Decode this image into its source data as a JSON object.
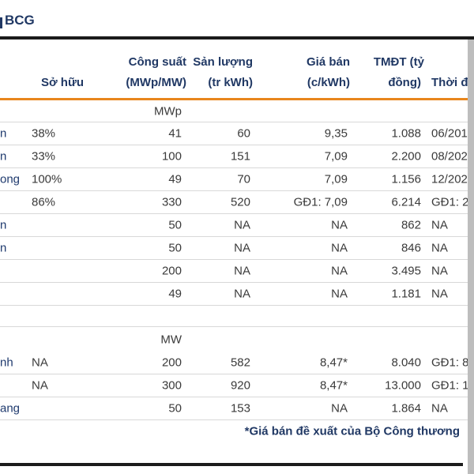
{
  "title": "BCG",
  "header": {
    "col_owner": "Sở hữu",
    "col_capacity_l1": "Công suất",
    "col_capacity_l2": "(MWp/MW)",
    "col_output_l1": "Sản lượng",
    "col_output_l2": "(tr kWh)",
    "col_price_l1": "Giá bán",
    "col_price_l2": "(c/kWh)",
    "col_capex_l1": "TMĐT (tỷ",
    "col_capex_l2": "đồng)",
    "col_time_l2": "Thời đ"
  },
  "rows": [
    {
      "type": "section",
      "cap": "MWp"
    },
    {
      "type": "data",
      "name": "n",
      "own": "38%",
      "cap": "41",
      "out": "60",
      "price": "9,35",
      "capex": "1.088",
      "time": "06/201"
    },
    {
      "type": "data",
      "name": "n",
      "own": "33%",
      "cap": "100",
      "out": "151",
      "price": "7,09",
      "capex": "2.200",
      "time": "08/202"
    },
    {
      "type": "data",
      "name": "ong",
      "own": "100%",
      "cap": "49",
      "out": "70",
      "price": "7,09",
      "capex": "1.156",
      "time": "12/202"
    },
    {
      "type": "data",
      "name": "",
      "own": "86%",
      "cap": "330",
      "out": "520",
      "price": "GĐ1: 7,09",
      "capex": "6.214",
      "time": "GĐ1: 2"
    },
    {
      "type": "data",
      "name": "n",
      "own": "",
      "cap": "50",
      "out": "NA",
      "price": "NA",
      "capex": "862",
      "time": "NA"
    },
    {
      "type": "data",
      "name": "n",
      "own": "",
      "cap": "50",
      "out": "NA",
      "price": "NA",
      "capex": "846",
      "time": "NA"
    },
    {
      "type": "data",
      "name": "",
      "own": "",
      "cap": "200",
      "out": "NA",
      "price": "NA",
      "capex": "3.495",
      "time": "NA"
    },
    {
      "type": "data",
      "name": "",
      "own": "",
      "cap": "49",
      "out": "NA",
      "price": "NA",
      "capex": "1.181",
      "time": "NA"
    },
    {
      "type": "spacer"
    },
    {
      "type": "section-mw",
      "cap": "MW"
    },
    {
      "type": "data",
      "name": "nh",
      "own": "NA",
      "cap": "200",
      "out": "582",
      "price": "8,47*",
      "capex": "8.040",
      "time": "GĐ1: 8"
    },
    {
      "type": "data",
      "name": "",
      "own": "NA",
      "cap": "300",
      "out": "920",
      "price": "8,47*",
      "capex": "13.000",
      "time": "GĐ1: 1"
    },
    {
      "type": "data",
      "name": "ang",
      "own": "",
      "cap": "50",
      "out": "153",
      "price": "NA",
      "capex": "1.864",
      "time": "NA"
    }
  ],
  "footnote": "*Giá bán đề xuất của Bộ Công thương",
  "colors": {
    "accent_navy": "#203864",
    "accent_orange": "#e8861c",
    "rule_black": "#1b1b1b",
    "separator_gray": "#d8d8d8",
    "edge_strip_gray": "#bdbdbd",
    "value_text": "#3a3a3a"
  }
}
